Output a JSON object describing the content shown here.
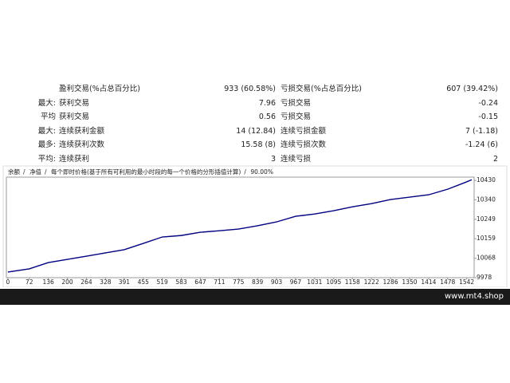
{
  "table": {
    "rows": [
      [
        null,
        "盈利交易(%占总百分比)",
        "933 (60.58%)",
        "亏损交易(%占总百分比)",
        "607 (39.42%)"
      ],
      [
        "最大:",
        "获利交易",
        "7.96",
        "亏损交易",
        "-0.24"
      ],
      [
        "平均",
        "获利交易",
        "0.56",
        "亏损交易",
        "-0.15"
      ],
      [
        "最大:",
        "连续获利金额",
        "14 (12.84)",
        "连续亏损金额",
        "7 (-1.18)"
      ],
      [
        "最多:",
        "连续获利次数",
        "15.58 (8)",
        "连续亏损次数",
        "-1.24 (6)"
      ],
      [
        "平均:",
        "连续获利",
        "3",
        "连续亏损",
        "2"
      ]
    ]
  },
  "chart": {
    "type": "line",
    "legend": [
      "余额",
      "净值",
      "每个即时价格(基于所有可利用的最小时段的每一个价格的分形插值计算)",
      "90.00%"
    ],
    "color": "#000080",
    "x": [
      0,
      72,
      136,
      200,
      264,
      328,
      391,
      455,
      519,
      583,
      647,
      711,
      775,
      839,
      903,
      967,
      1031,
      1095,
      1158,
      1222,
      1286,
      1350,
      1414,
      1478,
      1540,
      1559
    ],
    "values": [
      10004,
      10019,
      10048,
      10063,
      10078,
      10093,
      10108,
      10137,
      10167,
      10174,
      10189,
      10196,
      10204,
      10219,
      10237,
      10263,
      10274,
      10289,
      10307,
      10322,
      10341,
      10352,
      10363,
      10389,
      10422,
      10433
    ],
    "xlim": [
      -5,
      1567
    ],
    "xticks": [
      0,
      72,
      136,
      200,
      264,
      328,
      391,
      455,
      519,
      583,
      647,
      711,
      775,
      839,
      903,
      967,
      1031,
      1095,
      1158,
      1222,
      1286,
      1350,
      1414,
      1478,
      1542
    ],
    "ylim": [
      9978,
      10445
    ],
    "yticks": [
      9978,
      10068,
      10159,
      10249,
      10340,
      10430
    ]
  },
  "footer": {
    "site": "www.mt4.shop"
  }
}
